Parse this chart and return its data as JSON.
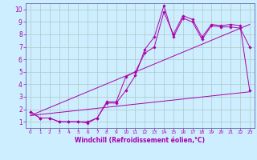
{
  "xlabel": "Windchill (Refroidissement éolien,°C)",
  "bg_color": "#cceeff",
  "grid_color": "#b0c8c8",
  "line_color": "#aa00aa",
  "spine_color": "#6666aa",
  "xlim": [
    -0.5,
    23.5
  ],
  "ylim": [
    0.5,
    10.5
  ],
  "xticks": [
    0,
    1,
    2,
    3,
    4,
    5,
    6,
    7,
    8,
    9,
    10,
    11,
    12,
    13,
    14,
    15,
    16,
    17,
    18,
    19,
    20,
    21,
    22,
    23
  ],
  "yticks": [
    1,
    2,
    3,
    4,
    5,
    6,
    7,
    8,
    9,
    10
  ],
  "curve1_x": [
    0,
    1,
    2,
    3,
    4,
    5,
    6,
    7,
    8,
    9,
    10,
    11,
    12,
    13,
    14,
    15,
    16,
    17,
    18,
    19,
    20,
    21,
    22,
    23
  ],
  "curve1_y": [
    1.8,
    1.3,
    1.3,
    1.0,
    1.0,
    1.0,
    1.0,
    1.3,
    2.5,
    2.5,
    3.5,
    4.7,
    6.8,
    7.8,
    10.3,
    7.8,
    9.3,
    9.0,
    7.6,
    8.7,
    8.6,
    8.6,
    8.5,
    7.0
  ],
  "curve2_x": [
    0,
    1,
    2,
    3,
    4,
    5,
    6,
    7,
    8,
    9,
    10,
    11,
    12,
    13,
    14,
    15,
    16,
    17,
    18,
    19,
    20,
    21,
    22,
    23
  ],
  "curve2_y": [
    1.8,
    1.3,
    1.3,
    1.0,
    1.0,
    1.0,
    0.9,
    1.3,
    2.6,
    2.6,
    4.6,
    5.0,
    6.5,
    7.0,
    9.8,
    8.0,
    9.5,
    9.2,
    7.8,
    8.8,
    8.7,
    8.8,
    8.7,
    3.5
  ],
  "line1_x": [
    0,
    23
  ],
  "line1_y": [
    1.5,
    3.4
  ],
  "line2_x": [
    0,
    23
  ],
  "line2_y": [
    1.5,
    8.8
  ]
}
